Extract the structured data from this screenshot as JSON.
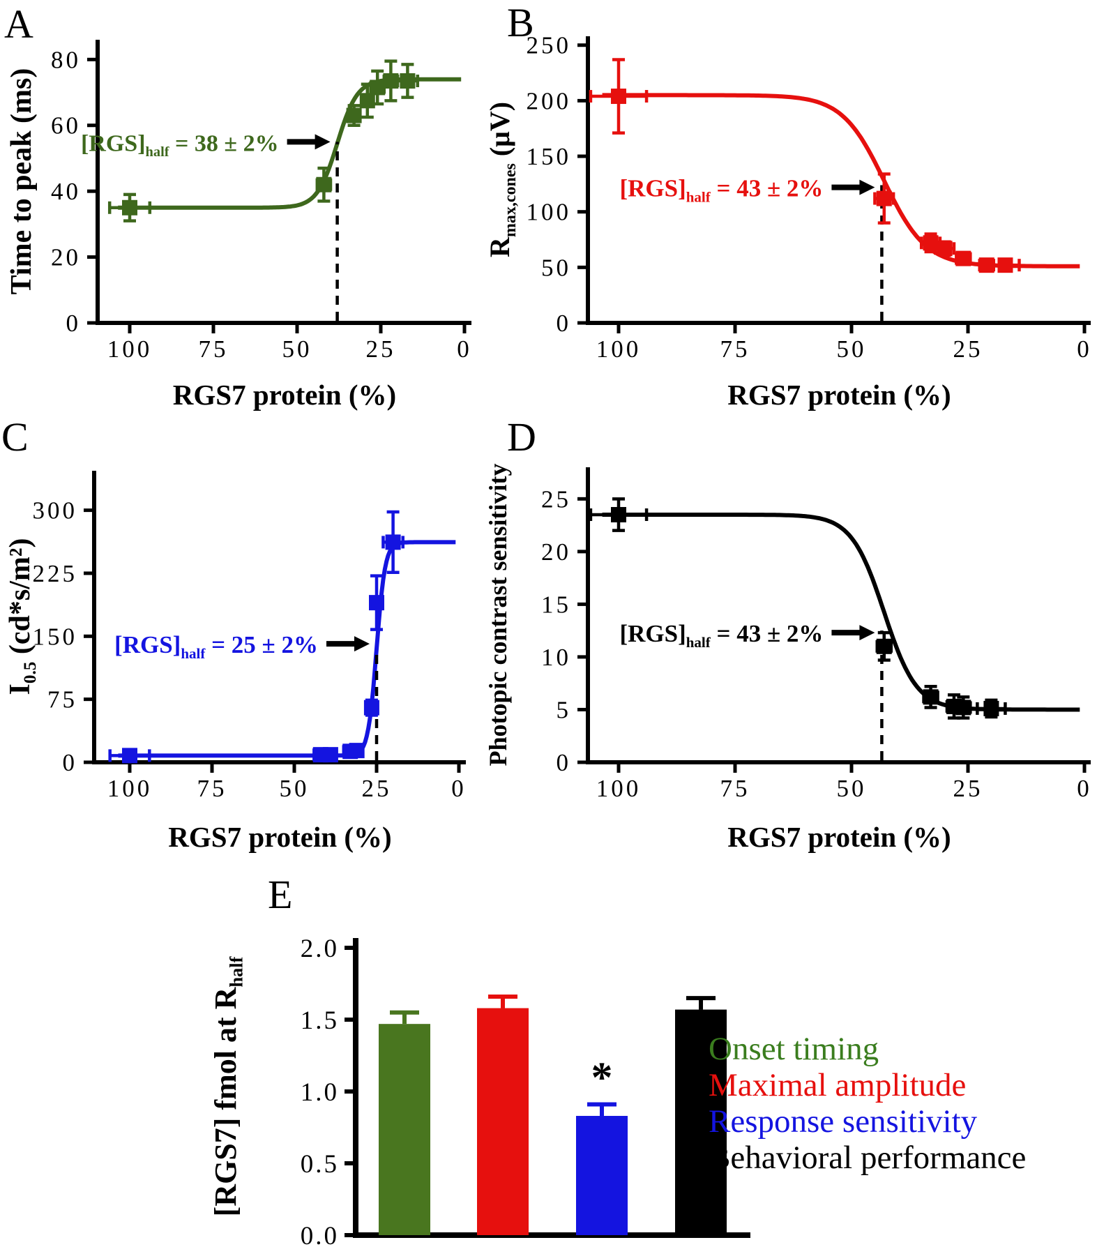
{
  "chart_data": [
    {
      "panel": "A",
      "letter": "A",
      "type": "scatter",
      "x_label": "RGS7 protein (%)",
      "y_label_segments": [
        {
          "t": "Time to peak (ms)"
        }
      ],
      "x_ticks": [
        "100",
        "75",
        "50",
        "25",
        "0"
      ],
      "y_ticks": [
        "0",
        "20",
        "40",
        "60",
        "80"
      ],
      "x_axis_reversed": true,
      "ylim": [
        0,
        86
      ],
      "color": "#3e681d",
      "points": [
        {
          "x": 100,
          "y": 35,
          "xe": 6,
          "ye": 4
        },
        {
          "x": 42,
          "y": 42,
          "xe": 2,
          "ye": 5
        },
        {
          "x": 33,
          "y": 63,
          "xe": 1.5,
          "ye": 3
        },
        {
          "x": 29,
          "y": 67.5,
          "xe": 1.5,
          "ye": 5
        },
        {
          "x": 26,
          "y": 71.5,
          "xe": 2,
          "ye": 5
        },
        {
          "x": 22,
          "y": 73.5,
          "xe": 2,
          "ye": 6
        },
        {
          "x": 17,
          "y": 73.5,
          "xe": 3,
          "ye": 5
        }
      ],
      "fit": {
        "value_at_0": 74,
        "value_at_100": 35,
        "xhalf": 38,
        "k": 3
      },
      "dash_x": 38,
      "annotation": {
        "segments": [
          {
            "t": "[RGS]"
          },
          {
            "t": "half",
            "sub": true
          },
          {
            "t": " = 38 ± 2%"
          }
        ],
        "arrow_y": 55,
        "line_top": 55
      }
    },
    {
      "panel": "B",
      "letter": "B",
      "type": "scatter",
      "x_label": "RGS7 protein (%)",
      "y_label_segments": [
        {
          "t": "R"
        },
        {
          "t": "max,cones",
          "sub": true
        },
        {
          "t": " (μV)"
        }
      ],
      "x_ticks": [
        "100",
        "75",
        "50",
        "25",
        "0"
      ],
      "y_ticks": [
        "0",
        "50",
        "100",
        "150",
        "200",
        "250"
      ],
      "x_axis_reversed": true,
      "ylim": [
        0,
        258
      ],
      "color": "#e6100e",
      "points": [
        {
          "x": 100,
          "y": 204,
          "xe": 6,
          "ye": 33
        },
        {
          "x": 43,
          "y": 112,
          "xe": 2,
          "ye": 22
        },
        {
          "x": 33,
          "y": 72,
          "xe": 2,
          "ye": 8
        },
        {
          "x": 30,
          "y": 67,
          "xe": 2,
          "ye": 6
        },
        {
          "x": 26,
          "y": 58,
          "xe": 1.5,
          "ye": 5
        },
        {
          "x": 21,
          "y": 52,
          "xe": 1.5,
          "ye": 4
        },
        {
          "x": 17,
          "y": 52,
          "xe": 3,
          "ye": 4
        }
      ],
      "fit": {
        "value_at_0": 51,
        "value_at_100": 205,
        "xhalf": 43,
        "k": 4.5
      },
      "dash_x": 43.5,
      "annotation": {
        "segments": [
          {
            "t": "[RGS]"
          },
          {
            "t": "half",
            "sub": true
          },
          {
            "t": " = 43 ± 2%"
          }
        ],
        "arrow_y": 122,
        "line_top": 124
      }
    },
    {
      "panel": "C",
      "letter": "C",
      "type": "scatter",
      "x_label": "RGS7 protein (%)",
      "y_label_segments": [
        {
          "t": "I"
        },
        {
          "t": "0.5",
          "sub": true
        },
        {
          "t": " (cd*s/m²)"
        }
      ],
      "x_ticks": [
        "100",
        "75",
        "50",
        "25",
        "0"
      ],
      "y_ticks": [
        "0",
        "75",
        "150",
        "225",
        "300"
      ],
      "x_axis_reversed": true,
      "ylim": [
        0,
        347
      ],
      "color": "#1414e0",
      "points": [
        {
          "x": 100,
          "y": 8,
          "xe": 6,
          "ye": 6
        },
        {
          "x": 42,
          "y": 9,
          "xe": 2,
          "ye": 4
        },
        {
          "x": 39,
          "y": 9,
          "xe": 1.5,
          "ye": 4
        },
        {
          "x": 33,
          "y": 13,
          "xe": 2,
          "ye": 5
        },
        {
          "x": 31,
          "y": 14,
          "xe": 1.5,
          "ye": 5
        },
        {
          "x": 26.5,
          "y": 65,
          "xe": 1.5,
          "ye": 9
        },
        {
          "x": 25,
          "y": 190,
          "xe": 1.5,
          "ye": 32
        },
        {
          "x": 20,
          "y": 262,
          "xe": 3,
          "ye": 36
        }
      ],
      "fit": {
        "value_at_0": 262,
        "value_at_100": 8,
        "xhalf": 25,
        "k": 1.3
      },
      "dash_x": 25,
      "annotation": {
        "segments": [
          {
            "t": "[RGS]"
          },
          {
            "t": "half",
            "sub": true
          },
          {
            "t": " = 25 ± 2%"
          }
        ],
        "arrow_y": 141,
        "line_top": 135
      }
    },
    {
      "panel": "D",
      "letter": "D",
      "type": "scatter",
      "x_label": "RGS7 protein (%)",
      "y_label_segments": [
        {
          "t": "Photopic contrast sensitivity"
        }
      ],
      "x_ticks": [
        "100",
        "75",
        "50",
        "25",
        "0"
      ],
      "y_ticks": [
        "0",
        "5",
        "10",
        "15",
        "20",
        "25"
      ],
      "x_axis_reversed": true,
      "ylim": [
        0,
        28
      ],
      "color": "#000000",
      "points": [
        {
          "x": 100,
          "y": 23.5,
          "xe": 6,
          "ye": 1.5
        },
        {
          "x": 43,
          "y": 11,
          "xe": 1.5,
          "ye": 1.3
        },
        {
          "x": 33,
          "y": 6.2,
          "xe": 1.5,
          "ye": 1
        },
        {
          "x": 28,
          "y": 5.3,
          "xe": 1.5,
          "ye": 1.1
        },
        {
          "x": 26,
          "y": 5.2,
          "xe": 1.5,
          "ye": 1
        },
        {
          "x": 20,
          "y": 5.1,
          "xe": 3,
          "ye": 0.8
        }
      ],
      "fit": {
        "value_at_0": 5,
        "value_at_100": 23.5,
        "xhalf": 43,
        "k": 3.5
      },
      "dash_x": 43.5,
      "annotation": {
        "segments": [
          {
            "t": "[RGS]"
          },
          {
            "t": "half",
            "sub": true
          },
          {
            "t": " = 43 ± 2%"
          }
        ],
        "arrow_y": 12.3,
        "line_top": 12.5
      }
    },
    {
      "panel": "E",
      "letter": "E",
      "type": "bar",
      "y_label_segments": [
        {
          "t": "[RGS7] fmol at R"
        },
        {
          "t": "half",
          "sub": true
        }
      ],
      "y_ticks": [
        "0.0",
        "0.5",
        "1.0",
        "1.5",
        "2.0"
      ],
      "ylim": [
        0,
        2
      ],
      "categories": [
        "Onset timing",
        "Maximal amplitude",
        "Response sensitivity",
        "Behavioral performance"
      ],
      "values": [
        1.47,
        1.58,
        0.83,
        1.57
      ],
      "errors": [
        0.08,
        0.08,
        0.08,
        0.08
      ],
      "colors": [
        "#49761f",
        "#e6100e",
        "#1414e0",
        "#000000"
      ],
      "significance": {
        "bar_index": 2,
        "marker": "*"
      }
    }
  ],
  "legend": {
    "items": [
      {
        "label": "Onset timing",
        "color": "#3a7d1e"
      },
      {
        "label": "Maximal amplitude",
        "color": "#e6100e"
      },
      {
        "label": "Response sensitivity",
        "color": "#1414e0"
      },
      {
        "label": "Behavioral performance",
        "color": "#000000"
      }
    ]
  }
}
